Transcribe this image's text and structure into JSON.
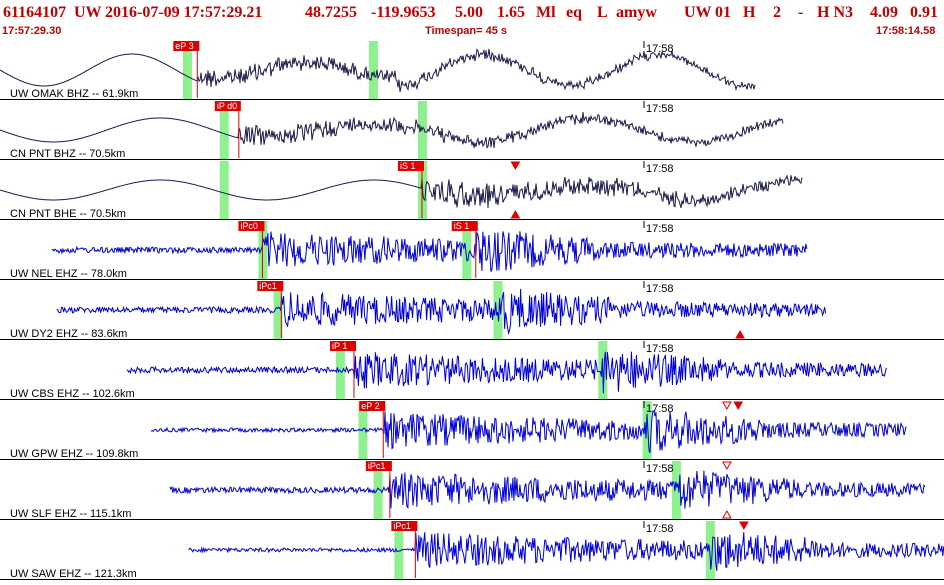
{
  "header": {
    "event_id": "61164107",
    "network": "UW",
    "datetime": "2016-07-09 17:57:29.21",
    "latitude": "48.7255",
    "longitude": "-119.9653",
    "depth": "5.00",
    "magnitude": "1.65",
    "mag_type": "Ml",
    "event_type": "eq",
    "flag": "L",
    "analyst": "amyw",
    "source": "UW",
    "version": "01",
    "quality_h": "H",
    "number": "2",
    "dash": "-",
    "solution": "H N3",
    "value1": "4.09",
    "value2": "0.91",
    "start_time": "17:57:29.30",
    "timespan": "Timespan=  45 s",
    "end_time": "17:58:14.58"
  },
  "minute_label": "17:58",
  "colors": {
    "header_text": "#c00000",
    "broadband_trace": "#1a1a4a",
    "short_period_trace": "#0000d8",
    "pick_red": "#e00000",
    "pick_window_green": "#8ff08f",
    "divider": "#000000"
  },
  "traces": [
    {
      "station_label": "UW OMAK BHZ -- 61.9km",
      "kind": "broadband",
      "picks": [
        {
          "label": "eP 3",
          "t": 0.209
        }
      ],
      "windows": [
        0.198,
        0.395
      ],
      "triangles": []
    },
    {
      "station_label": "CN PNT BHZ -- 70.5km",
      "kind": "broadband",
      "picks": [
        {
          "label": "iP d0",
          "t": 0.253
        }
      ],
      "windows": [
        0.237,
        0.447
      ],
      "triangles": []
    },
    {
      "station_label": "CN PNT BHE -- 70.5km",
      "kind": "broadband",
      "picks": [
        {
          "label": "iS 1",
          "t": 0.447
        }
      ],
      "windows": [
        0.237,
        0.447
      ],
      "triangles": [
        {
          "t": 0.546,
          "dir": "down",
          "filled": true
        },
        {
          "t": 0.546,
          "dir": "up",
          "filled": true
        }
      ]
    },
    {
      "station_label": "UW NEL EHZ -- 78.0km",
      "kind": "shortperiod",
      "picks": [
        {
          "label": "iPc0",
          "t": 0.278
        },
        {
          "label": "iS 1",
          "t": 0.504
        }
      ],
      "windows": [
        0.278,
        0.494
      ],
      "triangles": []
    },
    {
      "station_label": "UW DY2 EHZ -- 83.6km",
      "kind": "shortperiod",
      "picks": [
        {
          "label": "iPc1",
          "t": 0.298
        }
      ],
      "windows": [
        0.294,
        0.527
      ],
      "triangles": [
        {
          "t": 0.784,
          "dir": "up",
          "filled": true
        }
      ]
    },
    {
      "station_label": "UW CBS EHZ -- 102.6km",
      "kind": "shortperiod",
      "picks": [
        {
          "label": "iP 1",
          "t": 0.375
        }
      ],
      "windows": [
        0.36,
        0.638
      ],
      "triangles": []
    },
    {
      "station_label": "UW GPW EHZ -- 109.8km",
      "kind": "shortperiod",
      "picks": [
        {
          "label": "eP 2",
          "t": 0.406
        }
      ],
      "windows": [
        0.384,
        0.685
      ],
      "triangles": [
        {
          "t": 0.782,
          "dir": "down",
          "filled": true
        },
        {
          "t": 0.77,
          "dir": "down",
          "filled": false
        }
      ]
    },
    {
      "station_label": "UW SLF EHZ -- 115.1km",
      "kind": "shortperiod",
      "picks": [
        {
          "label": "iPc1",
          "t": 0.413
        }
      ],
      "windows": [
        0.4,
        0.716
      ],
      "triangles": [
        {
          "t": 0.77,
          "dir": "down",
          "filled": false
        },
        {
          "t": 0.77,
          "dir": "up",
          "filled": false
        }
      ]
    },
    {
      "station_label": "UW SAW EHZ -- 121.3km",
      "kind": "shortperiod",
      "picks": [
        {
          "label": "iPc1",
          "t": 0.44
        }
      ],
      "windows": [
        0.422,
        0.752
      ],
      "triangles": [
        {
          "t": 0.788,
          "dir": "down",
          "filled": true
        }
      ]
    }
  ]
}
